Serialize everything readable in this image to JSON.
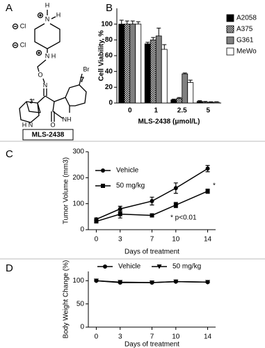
{
  "structure": {
    "panel_label": "A",
    "compound": "MLS-2438",
    "atoms": [
      "H",
      "N",
      "H",
      "Cl",
      "Cl",
      "N",
      "H",
      "O",
      "N",
      "3'",
      "N",
      "H",
      "Br",
      "7",
      "NH",
      "O"
    ]
  },
  "chart_data": [
    {
      "panel_label": "B",
      "type": "bar",
      "ylabel": "Cell Viability, %",
      "xlabel": "MLS-2438 (μmol/L)",
      "categories": [
        "0",
        "1",
        "2.5",
        "5"
      ],
      "ylim": [
        0,
        120
      ],
      "yticks": [
        0,
        20,
        40,
        60,
        80,
        100
      ],
      "legend": "right",
      "series": [
        {
          "name": "A2058",
          "color": "#000000",
          "values": [
            100,
            75,
            4,
            2
          ],
          "errors": [
            5,
            2,
            1,
            1
          ]
        },
        {
          "name": "A375",
          "color": "#ffffff",
          "pattern": "checker",
          "values": [
            100,
            80,
            6,
            1
          ],
          "errors": [
            4,
            3,
            1,
            1
          ]
        },
        {
          "name": "G361",
          "color": "#808080",
          "values": [
            100,
            85,
            37,
            1
          ],
          "errors": [
            4,
            10,
            1,
            0.5
          ]
        },
        {
          "name": "MeWo",
          "color": "#ffffff",
          "values": [
            100,
            68,
            26,
            1
          ],
          "errors": [
            3,
            6,
            3,
            0.5
          ]
        }
      ]
    },
    {
      "panel_label": "C",
      "type": "line",
      "ylabel": "Tumor Volume (mm3)",
      "xlabel": "Days of treatment",
      "x": [
        0,
        3,
        7,
        10,
        14
      ],
      "xlim": [
        -1,
        15
      ],
      "xticks": [
        0,
        3,
        7,
        10,
        14
      ],
      "ylim": [
        0,
        300
      ],
      "yticks": [
        0,
        100,
        200,
        300
      ],
      "legend": "upper left",
      "annotations": [
        "*",
        "* p<0.01"
      ],
      "series": [
        {
          "name": "Vehicle",
          "color": "#000000",
          "marker": "circle",
          "values": [
            40,
            80,
            110,
            160,
            235
          ],
          "errors": [
            5,
            10,
            15,
            20,
            12
          ]
        },
        {
          "name": "50 mg/kg",
          "color": "#000000",
          "marker": "square",
          "values": [
            32,
            60,
            55,
            95,
            148
          ],
          "errors": [
            5,
            15,
            5,
            10,
            8
          ]
        }
      ]
    },
    {
      "panel_label": "D",
      "type": "line",
      "ylabel": "Body Weight Change (%)",
      "xlabel": "Days of treatment",
      "x": [
        0,
        3,
        7,
        10,
        14
      ],
      "xlim": [
        -1,
        15
      ],
      "xticks": [
        0,
        3,
        7,
        10,
        14
      ],
      "ylim": [
        0,
        120
      ],
      "yticks": [
        0,
        50,
        100
      ],
      "legend": "top",
      "series": [
        {
          "name": "Vehicle",
          "color": "#000000",
          "marker": "circle",
          "values": [
            100,
            96,
            96,
            98,
            97
          ],
          "errors": [
            1,
            1,
            1,
            1,
            1
          ]
        },
        {
          "name": "50 mg/kg",
          "color": "#000000",
          "marker": "triangle-down",
          "values": [
            100,
            97,
            96,
            98,
            97
          ],
          "errors": [
            1,
            1,
            1,
            1,
            1
          ]
        }
      ]
    }
  ]
}
